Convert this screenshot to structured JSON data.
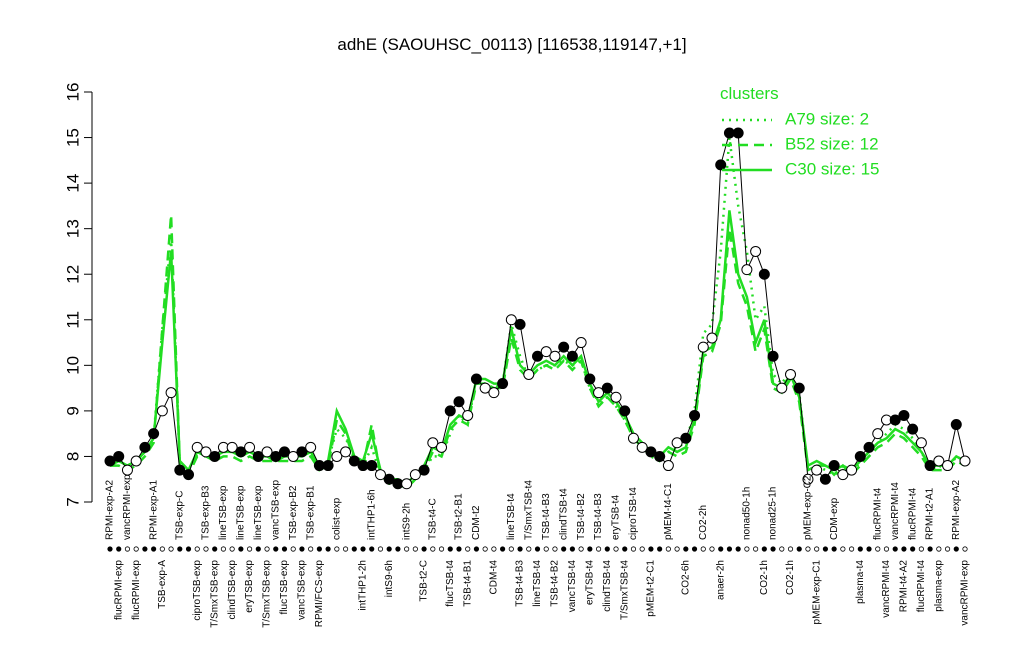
{
  "chart_data": {
    "type": "line",
    "title": "adhE (SAOUHSC_00113) [116538,119147,+1]",
    "legend_title": "clusters",
    "categories": [
      "RPMI-exp-A2",
      "flucRPMI-exp",
      "vancRPMI-exp",
      "flucRPMI-exp",
      null,
      "RPMI-exp-A1",
      "TSB-exp-A",
      null,
      "TSB-exp-C",
      null,
      "ciproTSB-exp",
      "TSB-exp-B3",
      "T/SmxTSB-exp",
      "lineTSB-exp",
      "clindTSB-exp",
      "lineTSB-exp",
      "eryTSB-exp",
      "lineTSB-exp",
      "T/SmxTSB-exp",
      "vancTSB-exp",
      "flucTSB-exp",
      "TSB-exp-B2",
      "vancTSB-exp",
      "TSB-exp-B1",
      "RPMI/FCS-exp",
      null,
      "colist-exp",
      null,
      null,
      "intTHP1-2h",
      "intTHP1-6h",
      null,
      "intS9-6h",
      null,
      "intS9-2h",
      null,
      "TSB-t2-C",
      "TSB-t4-C",
      null,
      "flucTSB-t4",
      "TSB-t2-B1",
      "TSB-t4-B1",
      "CDM-t2",
      null,
      "CDM-t4",
      null,
      "lineTSB-t4",
      "TSB-t4-B3",
      "T/SmxTSB-t4",
      "lineTSB-t4",
      "TSB-t4-B3",
      "TSB-t4-B2",
      "clindTSB-t4",
      "vancTSB-t4",
      "TSB-t4-B2",
      "eryTSB-t4",
      "TSB-t4-B3",
      "clindTSB-t4",
      "eryTSB-t4",
      "T/SmxTSB-t4",
      "ciproTSB-t4",
      null,
      "pMEM-t2-C1",
      null,
      "pMEM-t4-C1",
      null,
      "CO2-6h",
      null,
      "CO2-2h",
      null,
      "anaer-2h",
      null,
      null,
      "nonad50-1h",
      null,
      "CO2-1h",
      "nonad25-1h",
      null,
      "CO2-1h",
      null,
      "pMEM-exp-C2",
      "pMEM-exp-C1",
      null,
      "CDM-exp",
      null,
      null,
      "plasma-t4",
      null,
      "flucRPMI-t4",
      "vancRPMI-t4",
      "vancRPMI-t4",
      "RPMI-t4-A2",
      "flucRPMI-t4",
      "flucRPMI-t4",
      "RPMI-t2-A1",
      "plasma-exp",
      null,
      "RPMI-exp-A2",
      "vancRPMI-exp"
    ],
    "values": [
      7.9,
      8.0,
      7.7,
      7.9,
      8.2,
      8.5,
      9.0,
      9.4,
      7.7,
      7.6,
      8.2,
      8.1,
      8.0,
      8.2,
      8.2,
      8.1,
      8.2,
      8.0,
      8.1,
      8.0,
      8.1,
      8.0,
      8.1,
      8.2,
      7.8,
      7.8,
      8.0,
      8.1,
      7.9,
      7.8,
      7.8,
      7.6,
      7.5,
      7.4,
      7.4,
      7.6,
      7.7,
      8.3,
      8.2,
      9.0,
      9.2,
      8.9,
      9.7,
      9.5,
      9.4,
      9.6,
      11.0,
      10.9,
      9.8,
      10.2,
      10.3,
      10.2,
      10.4,
      10.2,
      10.5,
      9.7,
      9.4,
      9.5,
      9.3,
      9.0,
      8.4,
      8.2,
      8.1,
      8.0,
      7.8,
      8.3,
      8.4,
      8.9,
      10.4,
      10.6,
      14.4,
      15.1,
      15.1,
      12.1,
      12.5,
      12.0,
      10.2,
      9.5,
      9.8,
      9.5,
      7.5,
      7.7,
      7.5,
      7.8,
      7.6,
      7.7,
      8.0,
      8.2,
      8.5,
      8.8,
      8.8,
      8.9,
      8.6,
      8.3,
      7.8,
      7.9,
      7.8,
      8.7,
      7.9
    ],
    "point_colors": [
      "black",
      "black",
      "white",
      "white",
      "black",
      "black",
      "white",
      "white",
      "black",
      "black",
      "white",
      "white",
      "black",
      "white",
      "white",
      "black",
      "white",
      "black",
      "white",
      "black",
      "black",
      "white",
      "black",
      "white",
      "black",
      "black",
      "white",
      "white",
      "black",
      "black",
      "black",
      "white",
      "black",
      "black",
      "white",
      "white",
      "black",
      "white",
      "white",
      "black",
      "black",
      "white",
      "black",
      "white",
      "white",
      "black",
      "white",
      "black",
      "white",
      "black",
      "white",
      "white",
      "black",
      "black",
      "white",
      "black",
      "white",
      "black",
      "white",
      "black",
      "white",
      "white",
      "black",
      "black",
      "white",
      "white",
      "black",
      "black",
      "white",
      "white",
      "black",
      "black",
      "black",
      "white",
      "white",
      "black",
      "black",
      "white",
      "white",
      "black",
      "white",
      "white",
      "black",
      "black",
      "white",
      "white",
      "black",
      "black",
      "white",
      "white",
      "black",
      "black",
      "black",
      "white",
      "black",
      "white",
      "white",
      "black",
      "white"
    ],
    "series": [
      {
        "name": "A79 size: 2",
        "color": "#22dd22",
        "dash": "dotted",
        "values": [
          7.8,
          7.9,
          7.8,
          7.9,
          8.1,
          8.4,
          10.8,
          12.8,
          7.8,
          7.6,
          8.1,
          8.0,
          8.0,
          8.1,
          8.1,
          8.0,
          8.1,
          8.0,
          8.0,
          7.9,
          8.0,
          8.0,
          8.0,
          8.1,
          7.8,
          7.9,
          8.6,
          8.4,
          8.0,
          7.8,
          8.2,
          7.6,
          7.4,
          7.4,
          7.3,
          7.5,
          7.7,
          8.0,
          8.0,
          8.5,
          8.9,
          8.7,
          9.7,
          9.6,
          9.5,
          9.6,
          10.9,
          10.2,
          9.7,
          9.9,
          10.0,
          10.0,
          10.1,
          10.0,
          10.1,
          9.5,
          9.2,
          9.3,
          9.1,
          8.8,
          8.4,
          8.2,
          8.0,
          7.9,
          8.1,
          8.2,
          8.3,
          9.0,
          10.7,
          10.9,
          12.5,
          15.0,
          13.5,
          12.5,
          11.0,
          11.3,
          9.8,
          9.6,
          9.9,
          9.4,
          7.7,
          7.8,
          7.7,
          7.6,
          7.7,
          7.6,
          7.9,
          8.1,
          8.3,
          8.5,
          8.7,
          8.6,
          8.4,
          8.1,
          7.7,
          7.8,
          7.7,
          8.0,
          7.9
        ]
      },
      {
        "name": "B52 size: 12",
        "color": "#22dd22",
        "dash": "dashed",
        "values": [
          7.8,
          7.8,
          7.7,
          7.8,
          8.0,
          8.3,
          10.8,
          13.3,
          7.8,
          7.6,
          8.0,
          8.0,
          7.9,
          8.0,
          8.0,
          7.9,
          8.0,
          7.9,
          7.9,
          7.9,
          7.9,
          7.9,
          7.9,
          8.0,
          7.7,
          7.8,
          8.8,
          8.5,
          7.9,
          7.8,
          8.7,
          7.6,
          7.4,
          7.4,
          7.3,
          7.5,
          7.7,
          8.1,
          8.0,
          8.6,
          8.8,
          8.7,
          9.6,
          9.6,
          9.5,
          9.5,
          10.6,
          9.9,
          9.7,
          9.9,
          10.0,
          9.9,
          10.1,
          9.9,
          10.1,
          9.5,
          9.1,
          9.3,
          9.1,
          8.8,
          8.4,
          8.2,
          8.0,
          7.9,
          8.1,
          8.0,
          8.1,
          8.7,
          10.2,
          10.3,
          10.9,
          13.0,
          11.8,
          11.3,
          10.3,
          10.8,
          9.5,
          9.4,
          9.7,
          9.2,
          7.7,
          7.8,
          7.8,
          7.6,
          7.8,
          7.6,
          7.8,
          8.0,
          8.2,
          8.3,
          8.5,
          8.4,
          8.2,
          8.0,
          7.7,
          7.7,
          7.7,
          7.9,
          7.8
        ]
      },
      {
        "name": "C30 size: 15",
        "color": "#22dd22",
        "dash": "solid",
        "values": [
          7.8,
          7.9,
          7.8,
          7.9,
          8.1,
          8.4,
          10.5,
          12.5,
          7.9,
          7.7,
          8.1,
          8.0,
          8.0,
          8.1,
          8.1,
          8.0,
          8.1,
          8.0,
          8.0,
          7.9,
          8.0,
          8.0,
          8.0,
          8.1,
          7.8,
          7.9,
          9.0,
          8.6,
          8.0,
          7.9,
          8.5,
          7.7,
          7.5,
          7.5,
          7.4,
          7.6,
          7.8,
          8.2,
          8.1,
          8.7,
          8.9,
          8.8,
          9.7,
          9.7,
          9.6,
          9.6,
          10.8,
          10.0,
          9.8,
          10.0,
          10.1,
          10.0,
          10.2,
          10.0,
          10.2,
          9.6,
          9.2,
          9.4,
          9.2,
          8.9,
          8.5,
          8.3,
          8.1,
          8.0,
          8.2,
          8.1,
          8.2,
          8.8,
          10.3,
          10.4,
          11.0,
          13.4,
          12.0,
          11.5,
          10.5,
          11.0,
          9.6,
          9.5,
          9.8,
          9.3,
          7.8,
          7.9,
          7.8,
          7.7,
          7.8,
          7.7,
          7.9,
          8.1,
          8.3,
          8.4,
          8.6,
          8.5,
          8.3,
          8.1,
          7.8,
          7.8,
          7.8,
          8.0,
          7.9
        ]
      }
    ],
    "ylim": [
      7,
      16
    ],
    "yticks": [
      7,
      8,
      9,
      10,
      11,
      12,
      13,
      14,
      15,
      16
    ],
    "grid": false
  }
}
